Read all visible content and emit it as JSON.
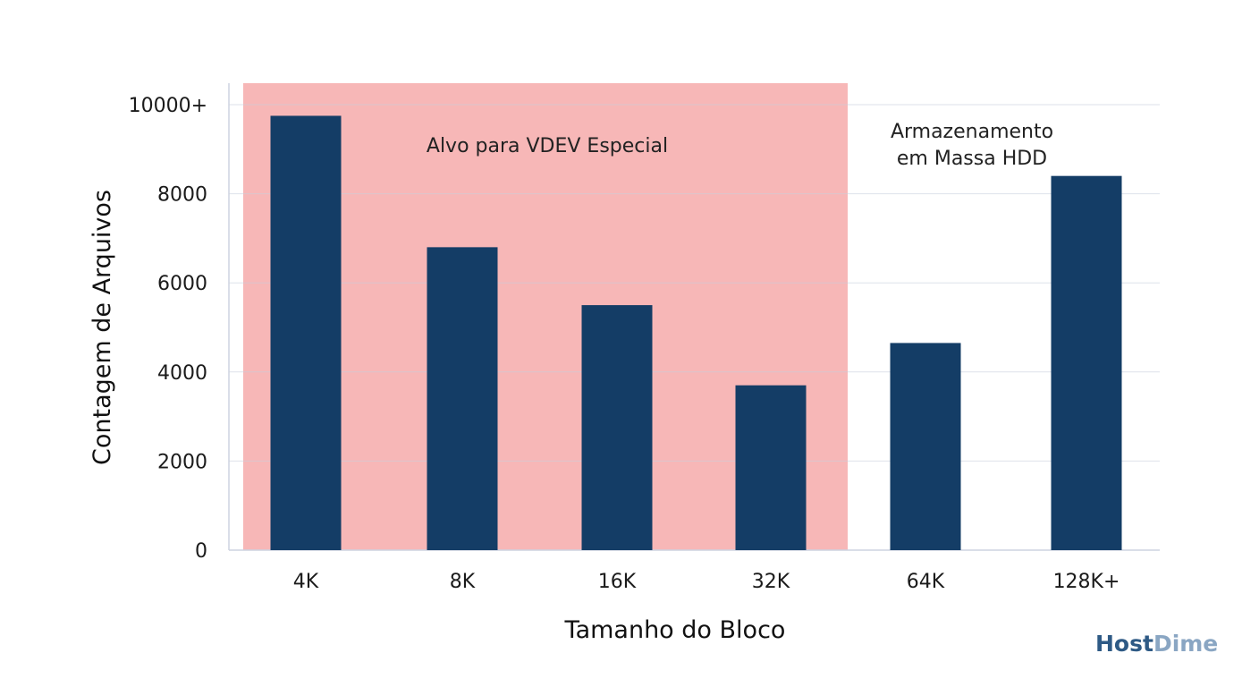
{
  "chart_data": {
    "type": "bar",
    "categories": [
      "4K",
      "8K",
      "16K",
      "32K",
      "64K",
      "128K+"
    ],
    "values": [
      9750,
      6800,
      5500,
      3700,
      4650,
      8400
    ],
    "xlabel": "Tamanho do Bloco",
    "ylabel": "Contagem de Arquivos",
    "ylim": [
      0,
      10000
    ],
    "yticks": [
      0,
      2000,
      4000,
      6000,
      8000,
      10000
    ],
    "ytick_labels": [
      "0",
      "2000",
      "4000",
      "6000",
      "8000",
      "10000+"
    ],
    "grid": true,
    "bar_color": "#143d66",
    "highlight_region": {
      "categories": [
        "4K",
        "8K",
        "16K",
        "32K"
      ],
      "label": "Alvo para VDEV Especial",
      "color": "#f7b3b3"
    },
    "annotations": [
      "Armazenamento",
      "em Massa HDD"
    ]
  },
  "brand": {
    "part1": "Host",
    "part2": "Dime",
    "color1": "#2e5a85",
    "color2": "#8aa6c3"
  }
}
